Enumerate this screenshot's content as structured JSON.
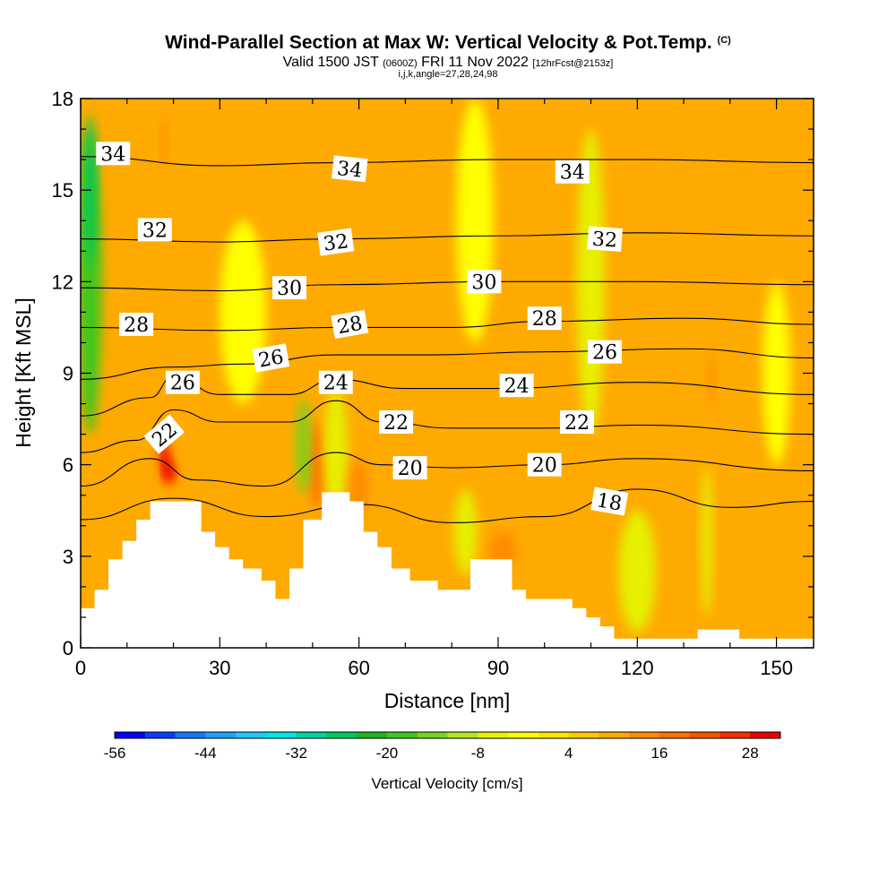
{
  "header": {
    "title": "Wind-Parallel Section at Max W: Vertical Velocity & Pot.Temp.",
    "title_mark": "(C)",
    "valid_prefix": "Valid 1500 JST",
    "valid_utc": "(0600Z)",
    "valid_date": "FRI 11 Nov 2022",
    "forecast": "[12hrFcst@2153z]",
    "indices": "i,j,k,angle=27,28,24,98"
  },
  "chart_data": {
    "type": "heatmap",
    "xlabel": "Distance [nm]",
    "ylabel": "Height [Kft MSL]",
    "xlim": [
      0,
      158
    ],
    "ylim": [
      0,
      18
    ],
    "x_ticks": [
      "0",
      "30",
      "60",
      "90",
      "120",
      "150"
    ],
    "y_ticks": [
      "0",
      "3",
      "6",
      "9",
      "12",
      "15",
      "18"
    ],
    "x_tick_values": [
      0,
      30,
      60,
      90,
      120,
      150
    ],
    "y_tick_values": [
      0,
      3,
      6,
      9,
      12,
      15,
      18
    ],
    "grid": false,
    "terrain": [
      [
        0,
        1.3
      ],
      [
        3,
        1.3
      ],
      [
        3,
        1.9
      ],
      [
        6,
        1.9
      ],
      [
        6,
        2.9
      ],
      [
        9,
        2.9
      ],
      [
        9,
        3.5
      ],
      [
        12,
        3.5
      ],
      [
        12,
        4.2
      ],
      [
        15,
        4.2
      ],
      [
        15,
        4.8
      ],
      [
        26,
        4.8
      ],
      [
        26,
        3.8
      ],
      [
        29,
        3.8
      ],
      [
        29,
        3.3
      ],
      [
        32,
        3.3
      ],
      [
        32,
        2.9
      ],
      [
        35,
        2.9
      ],
      [
        35,
        2.6
      ],
      [
        39,
        2.6
      ],
      [
        39,
        2.2
      ],
      [
        42,
        2.2
      ],
      [
        42,
        1.6
      ],
      [
        45,
        1.6
      ],
      [
        45,
        2.6
      ],
      [
        48,
        2.6
      ],
      [
        48,
        4.2
      ],
      [
        52,
        4.2
      ],
      [
        52,
        5.1
      ],
      [
        58,
        5.1
      ],
      [
        58,
        4.8
      ],
      [
        61,
        4.8
      ],
      [
        61,
        3.8
      ],
      [
        64,
        3.8
      ],
      [
        64,
        3.3
      ],
      [
        67,
        3.3
      ],
      [
        67,
        2.6
      ],
      [
        71,
        2.6
      ],
      [
        71,
        2.2
      ],
      [
        77,
        2.2
      ],
      [
        77,
        1.9
      ],
      [
        84,
        1.9
      ],
      [
        84,
        2.9
      ],
      [
        93,
        2.9
      ],
      [
        93,
        1.9
      ],
      [
        96,
        1.9
      ],
      [
        96,
        1.6
      ],
      [
        106,
        1.6
      ],
      [
        106,
        1.3
      ],
      [
        109,
        1.3
      ],
      [
        109,
        1.0
      ],
      [
        112,
        1.0
      ],
      [
        112,
        0.7
      ],
      [
        115,
        0.7
      ],
      [
        115,
        0.3
      ],
      [
        133,
        0.3
      ],
      [
        133,
        0.6
      ],
      [
        142,
        0.6
      ],
      [
        142,
        0.3
      ],
      [
        158,
        0.3
      ]
    ],
    "colorbar": {
      "label": "Vertical Velocity [cm/s]",
      "tick_labels": [
        "-56",
        "-44",
        "-32",
        "-20",
        "-8",
        "4",
        "16",
        "28"
      ],
      "tick_values": [
        -56,
        -44,
        -32,
        -20,
        -8,
        4,
        16,
        28
      ],
      "min": -56,
      "max": 32,
      "step": 4,
      "colors": [
        "#0000ff",
        "#0a3cff",
        "#1478ff",
        "#1ea0ff",
        "#1ec8ff",
        "#00e6e6",
        "#00d2a0",
        "#00c85a",
        "#1eb41e",
        "#3cc81e",
        "#78d21e",
        "#b4e61e",
        "#e6f000",
        "#ffff00",
        "#ffe600",
        "#ffc800",
        "#ffaa00",
        "#ff8c00",
        "#ff6e00",
        "#ff5000",
        "#ff2800",
        "#e60000",
        "#c80032",
        "#a0005a",
        "#78007d",
        "#5a0096"
      ]
    },
    "series": [
      {
        "name": "18",
        "values": [
          [
            0,
            4.2
          ],
          [
            20,
            4.9
          ],
          [
            40,
            4.3
          ],
          [
            60,
            4.7
          ],
          [
            80,
            4.1
          ],
          [
            100,
            4.3
          ],
          [
            120,
            5.2
          ],
          [
            140,
            4.6
          ],
          [
            158,
            4.8
          ]
        ]
      },
      {
        "name": "20",
        "values": [
          [
            0,
            5.3
          ],
          [
            15,
            6.2
          ],
          [
            25,
            5.5
          ],
          [
            40,
            5.3
          ],
          [
            55,
            6.4
          ],
          [
            65,
            6.0
          ],
          [
            80,
            5.9
          ],
          [
            100,
            6.0
          ],
          [
            120,
            6.2
          ],
          [
            158,
            5.8
          ]
        ]
      },
      {
        "name": "22",
        "values": [
          [
            0,
            6.4
          ],
          [
            12,
            6.8
          ],
          [
            20,
            7.8
          ],
          [
            30,
            7.4
          ],
          [
            45,
            7.4
          ],
          [
            55,
            8.1
          ],
          [
            65,
            7.4
          ],
          [
            80,
            7.2
          ],
          [
            100,
            7.2
          ],
          [
            120,
            7.3
          ],
          [
            158,
            7.0
          ]
        ]
      },
      {
        "name": "24",
        "values": [
          [
            0,
            7.6
          ],
          [
            15,
            8.2
          ],
          [
            20,
            8.9
          ],
          [
            30,
            8.3
          ],
          [
            45,
            8.3
          ],
          [
            55,
            8.8
          ],
          [
            70,
            8.5
          ],
          [
            90,
            8.5
          ],
          [
            120,
            8.7
          ],
          [
            158,
            8.3
          ]
        ]
      },
      {
        "name": "26",
        "values": [
          [
            0,
            8.8
          ],
          [
            20,
            9.2
          ],
          [
            35,
            9.3
          ],
          [
            55,
            9.6
          ],
          [
            75,
            9.6
          ],
          [
            100,
            9.7
          ],
          [
            130,
            9.8
          ],
          [
            158,
            9.5
          ]
        ]
      },
      {
        "name": "28",
        "values": [
          [
            0,
            10.5
          ],
          [
            30,
            10.4
          ],
          [
            55,
            10.5
          ],
          [
            80,
            10.5
          ],
          [
            100,
            10.7
          ],
          [
            130,
            10.8
          ],
          [
            158,
            10.6
          ]
        ]
      },
      {
        "name": "30",
        "values": [
          [
            0,
            11.8
          ],
          [
            30,
            11.7
          ],
          [
            55,
            11.9
          ],
          [
            90,
            12.0
          ],
          [
            120,
            12.0
          ],
          [
            158,
            11.9
          ]
        ]
      },
      {
        "name": "32",
        "values": [
          [
            0,
            13.4
          ],
          [
            30,
            13.3
          ],
          [
            55,
            13.4
          ],
          [
            90,
            13.5
          ],
          [
            120,
            13.6
          ],
          [
            158,
            13.5
          ]
        ]
      },
      {
        "name": "34",
        "values": [
          [
            0,
            16.1
          ],
          [
            30,
            15.8
          ],
          [
            55,
            15.9
          ],
          [
            90,
            16.0
          ],
          [
            120,
            16.0
          ],
          [
            158,
            15.9
          ]
        ]
      }
    ],
    "contour_levels": [
      "18",
      "20",
      "22",
      "24",
      "26",
      "28",
      "30",
      "32",
      "34"
    ],
    "contour_labels": [
      {
        "text": "34",
        "x": 7,
        "y": 16.2,
        "angle": 0
      },
      {
        "text": "34",
        "x": 58,
        "y": 15.7,
        "angle": 6
      },
      {
        "text": "34",
        "x": 106,
        "y": 15.6,
        "angle": 0
      },
      {
        "text": "32",
        "x": 16,
        "y": 13.7,
        "angle": 0
      },
      {
        "text": "32",
        "x": 55,
        "y": 13.3,
        "angle": -8
      },
      {
        "text": "32",
        "x": 113,
        "y": 13.4,
        "angle": 4
      },
      {
        "text": "30",
        "x": 45,
        "y": 11.8,
        "angle": 0
      },
      {
        "text": "30",
        "x": 87,
        "y": 12.0,
        "angle": 0
      },
      {
        "text": "28",
        "x": 12,
        "y": 10.6,
        "angle": 0
      },
      {
        "text": "28",
        "x": 58,
        "y": 10.6,
        "angle": -10
      },
      {
        "text": "28",
        "x": 100,
        "y": 10.8,
        "angle": 0
      },
      {
        "text": "26",
        "x": 41,
        "y": 9.5,
        "angle": -10
      },
      {
        "text": "26",
        "x": 113,
        "y": 9.7,
        "angle": 0
      },
      {
        "text": "26",
        "x": 22,
        "y": 8.7,
        "angle": 0
      },
      {
        "text": "24",
        "x": 55,
        "y": 8.7,
        "angle": 0
      },
      {
        "text": "24",
        "x": 94,
        "y": 8.6,
        "angle": 0
      },
      {
        "text": "22",
        "x": 18,
        "y": 7.0,
        "angle": -40
      },
      {
        "text": "22",
        "x": 68,
        "y": 7.4,
        "angle": 0
      },
      {
        "text": "22",
        "x": 107,
        "y": 7.4,
        "angle": 0
      },
      {
        "text": "20",
        "x": 71,
        "y": 5.9,
        "angle": 0
      },
      {
        "text": "20",
        "x": 100,
        "y": 6.0,
        "angle": 0
      },
      {
        "text": "18",
        "x": 114,
        "y": 4.8,
        "angle": 10
      }
    ],
    "velocity_features": [
      {
        "x": 2,
        "y": 12,
        "rx": 2.5,
        "ry": 5,
        "w": -18
      },
      {
        "x": 2,
        "y": 15,
        "rx": 1.2,
        "ry": 2.5,
        "w": -26
      },
      {
        "x": 19,
        "y": 6.4,
        "rx": 2,
        "ry": 1.0,
        "w": 24
      },
      {
        "x": 19,
        "y": 6.0,
        "rx": 1.0,
        "ry": 0.6,
        "w": 30
      },
      {
        "x": 22,
        "y": 7.4,
        "rx": 3.5,
        "ry": 1.6,
        "w": 10
      },
      {
        "x": 18,
        "y": 16.5,
        "rx": 0.6,
        "ry": 0.9,
        "w": 14
      },
      {
        "x": 51,
        "y": 6.0,
        "rx": 1.5,
        "ry": 1.4,
        "w": 18
      },
      {
        "x": 48,
        "y": 6.6,
        "rx": 1.5,
        "ry": 1.6,
        "w": -14
      },
      {
        "x": 55,
        "y": 6.5,
        "rx": 2.5,
        "ry": 2,
        "w": -6
      },
      {
        "x": 60,
        "y": 5.2,
        "rx": 2,
        "ry": 1,
        "w": 14
      },
      {
        "x": 66,
        "y": 4.0,
        "rx": 3.5,
        "ry": 1.5,
        "w": 10
      },
      {
        "x": 70,
        "y": 3.0,
        "rx": 4,
        "ry": 1.3,
        "w": 8
      },
      {
        "x": 91,
        "y": 3.2,
        "rx": 3,
        "ry": 0.6,
        "w": 14
      },
      {
        "x": 83,
        "y": 3.8,
        "rx": 2.5,
        "ry": 1.4,
        "w": -8
      },
      {
        "x": 136,
        "y": 8.8,
        "rx": 0.7,
        "ry": 0.8,
        "w": 14
      },
      {
        "x": 135,
        "y": 3.5,
        "rx": 1.2,
        "ry": 2.5,
        "w": -8
      },
      {
        "x": 150,
        "y": 9,
        "rx": 3,
        "ry": 3,
        "w": -4
      },
      {
        "x": 120,
        "y": 2.5,
        "rx": 4,
        "ry": 2,
        "w": -5
      },
      {
        "x": 85,
        "y": 14,
        "rx": 4,
        "ry": 4,
        "w": -4
      },
      {
        "x": 35,
        "y": 11,
        "rx": 5,
        "ry": 3,
        "w": -4
      },
      {
        "x": 110,
        "y": 12,
        "rx": 3,
        "ry": 5,
        "w": -5
      }
    ]
  }
}
